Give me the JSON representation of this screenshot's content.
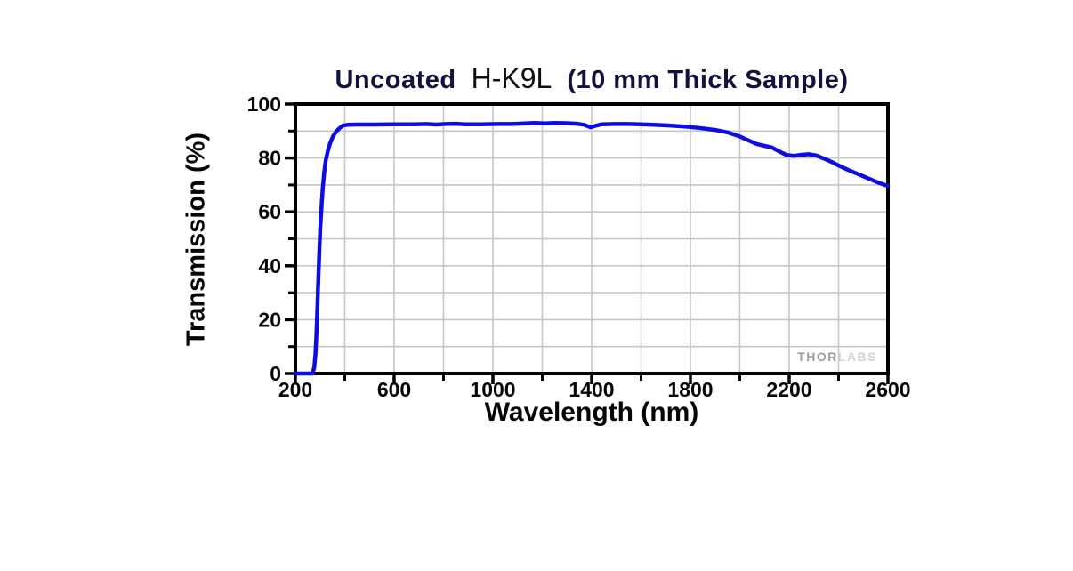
{
  "chart": {
    "title": {
      "prefix": "Uncoated",
      "material": "H-K9L",
      "suffix": "(10 mm Thick Sample)"
    },
    "axes": {
      "x_label": "Wavelength (nm)",
      "y_label": "Transmission (%)"
    },
    "watermark": {
      "brand_bold": "THOR",
      "brand_light": "LABS"
    },
    "colors": {
      "curve": "#0d0de2",
      "grid": "#c6c6c6",
      "axis": "#000000",
      "tick_label": "#050505",
      "title": "#12123e"
    }
  },
  "chart_data": {
    "type": "line",
    "title": "Uncoated H-K9L (10 mm Thick Sample)",
    "xlabel": "Wavelength (nm)",
    "ylabel": "Transmission (%)",
    "xlim": [
      200,
      2600
    ],
    "ylim": [
      0,
      100
    ],
    "x_major_ticks": [
      200,
      600,
      1000,
      1400,
      1800,
      2200,
      2600
    ],
    "x_minor_ticks": [
      400,
      800,
      1200,
      1600,
      2000,
      2400
    ],
    "y_major_ticks": [
      0,
      20,
      40,
      60,
      80,
      100
    ],
    "y_minor_ticks": [
      10,
      30,
      50,
      70,
      90
    ],
    "grid": {
      "x_lines_every_nm": 200,
      "y_lines_every_pct": 10,
      "on": true
    },
    "legend": "none",
    "watermark": "THORLABS",
    "series": [
      {
        "name": "Transmission of uncoated H-K9L, 10 mm thick",
        "color": "#0d0de2",
        "points": [
          [
            200,
            0
          ],
          [
            268,
            0
          ],
          [
            276,
            2
          ],
          [
            281,
            7
          ],
          [
            285,
            14
          ],
          [
            289,
            24
          ],
          [
            293,
            35
          ],
          [
            297,
            45
          ],
          [
            301,
            54
          ],
          [
            306,
            62
          ],
          [
            311,
            69
          ],
          [
            317,
            75
          ],
          [
            323,
            79
          ],
          [
            331,
            82.5
          ],
          [
            341,
            85.5
          ],
          [
            352,
            88
          ],
          [
            365,
            89.8
          ],
          [
            378,
            91
          ],
          [
            392,
            92
          ],
          [
            410,
            92.3
          ],
          [
            450,
            92.4
          ],
          [
            520,
            92.4
          ],
          [
            600,
            92.5
          ],
          [
            680,
            92.5
          ],
          [
            730,
            92.6
          ],
          [
            770,
            92.4
          ],
          [
            810,
            92.6
          ],
          [
            850,
            92.7
          ],
          [
            890,
            92.5
          ],
          [
            950,
            92.5
          ],
          [
            1020,
            92.6
          ],
          [
            1080,
            92.6
          ],
          [
            1130,
            92.8
          ],
          [
            1170,
            93
          ],
          [
            1210,
            92.8
          ],
          [
            1250,
            93
          ],
          [
            1300,
            92.9
          ],
          [
            1340,
            92.7
          ],
          [
            1370,
            92.3
          ],
          [
            1395,
            91.4
          ],
          [
            1415,
            91.9
          ],
          [
            1440,
            92.5
          ],
          [
            1490,
            92.6
          ],
          [
            1550,
            92.6
          ],
          [
            1600,
            92.5
          ],
          [
            1650,
            92.3
          ],
          [
            1700,
            92.1
          ],
          [
            1750,
            91.8
          ],
          [
            1800,
            91.5
          ],
          [
            1850,
            91
          ],
          [
            1900,
            90.4
          ],
          [
            1950,
            89.5
          ],
          [
            2000,
            88
          ],
          [
            2040,
            86.3
          ],
          [
            2070,
            85.1
          ],
          [
            2100,
            84.5
          ],
          [
            2130,
            83.9
          ],
          [
            2160,
            82.4
          ],
          [
            2190,
            81.1
          ],
          [
            2220,
            80.8
          ],
          [
            2250,
            81.2
          ],
          [
            2280,
            81.4
          ],
          [
            2310,
            80.9
          ],
          [
            2340,
            79.8
          ],
          [
            2370,
            78.6
          ],
          [
            2400,
            77.2
          ],
          [
            2440,
            75.5
          ],
          [
            2480,
            74
          ],
          [
            2520,
            72.4
          ],
          [
            2560,
            70.9
          ],
          [
            2600,
            69.6
          ]
        ]
      }
    ]
  }
}
